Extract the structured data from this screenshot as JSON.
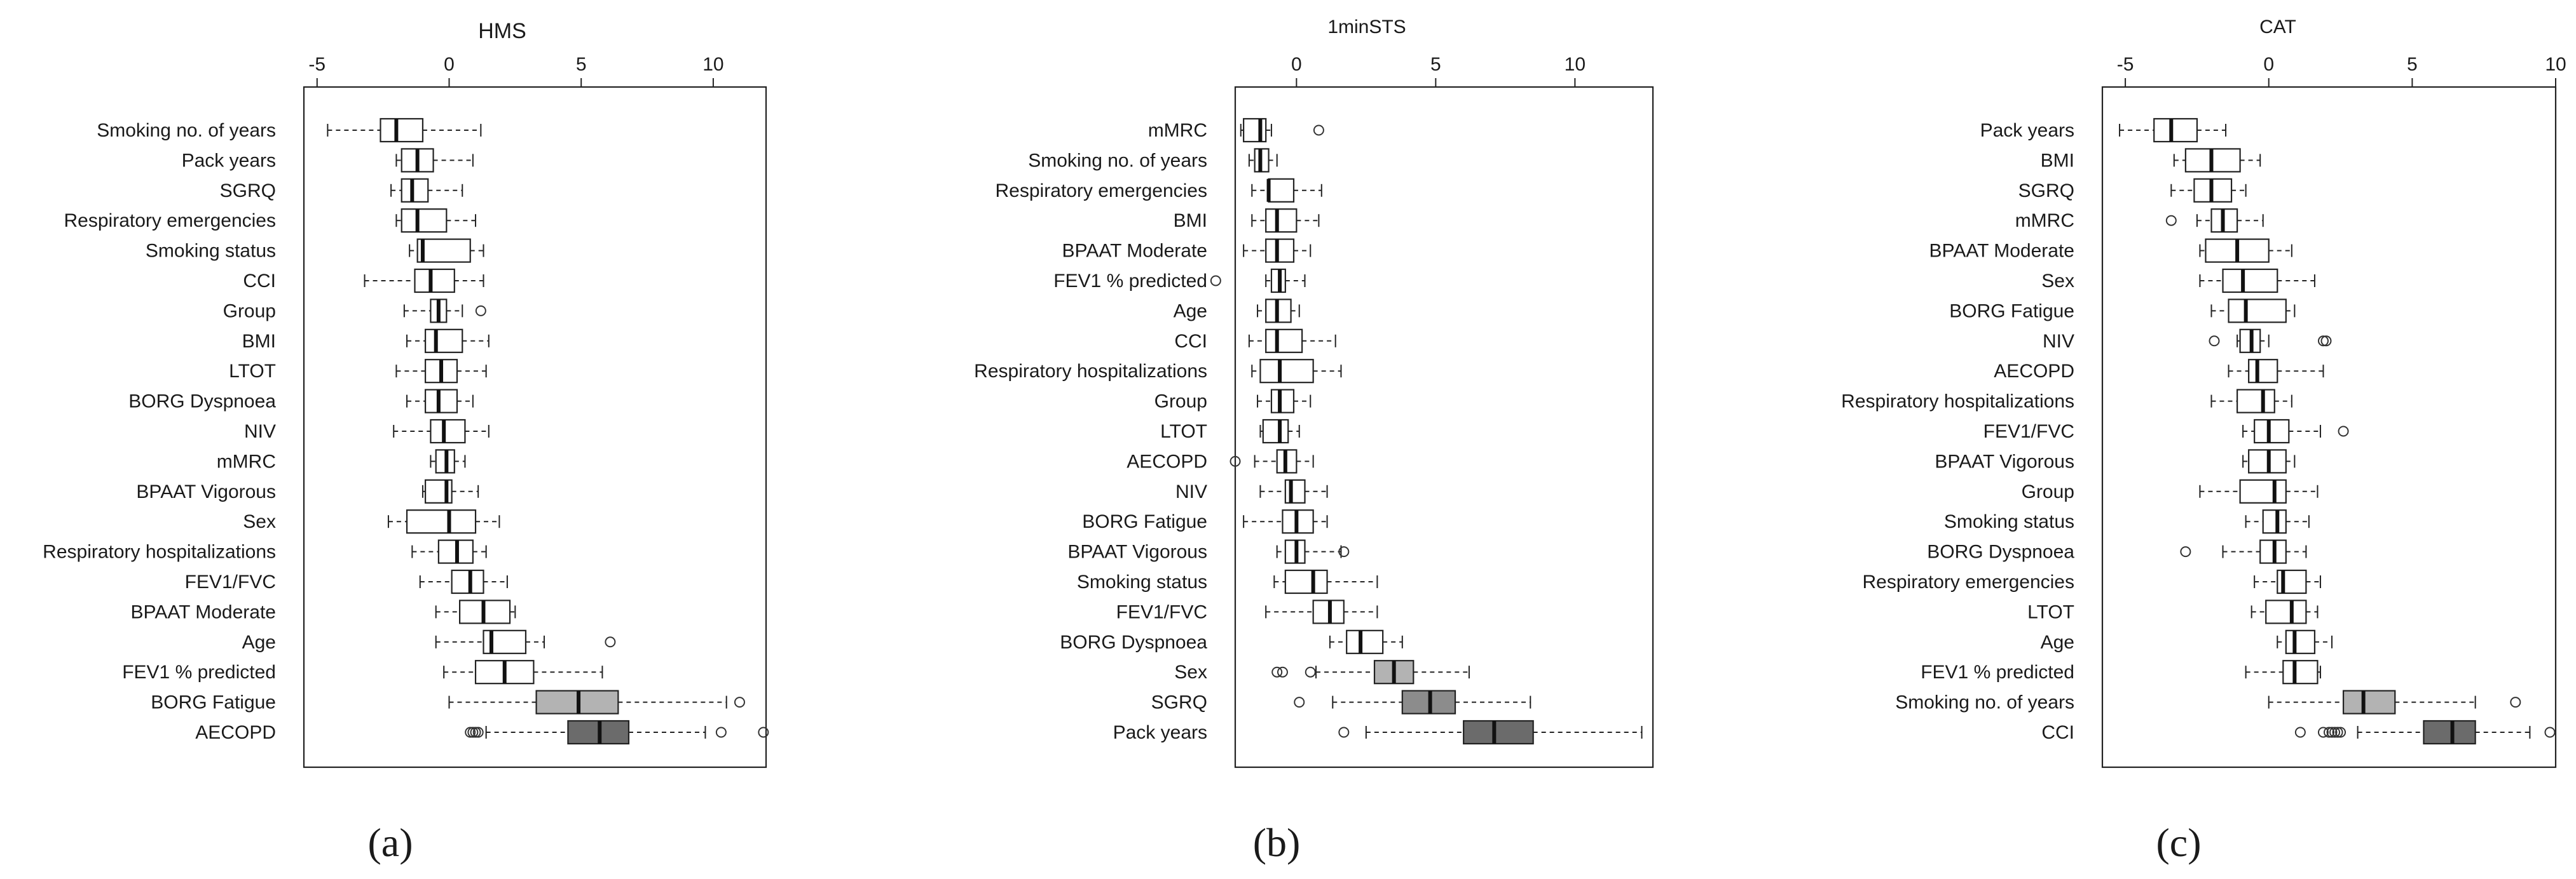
{
  "chart_data": [
    {
      "type": "boxplot",
      "title": "HMS",
      "panel_label": "(a)",
      "xlim": [
        -5.5,
        12
      ],
      "xticks": [
        -5,
        0,
        5,
        10
      ],
      "tick_labels": [
        "-5",
        "0",
        "5",
        "10"
      ],
      "rows": [
        {
          "label": "Smoking no. of years",
          "fill": "#ffffff",
          "min": -4.6,
          "q1": -2.6,
          "median": -2.0,
          "q3": -1.0,
          "max": 1.2,
          "outliers": []
        },
        {
          "label": "Pack years",
          "fill": "#ffffff",
          "min": -2.0,
          "q1": -1.8,
          "median": -1.2,
          "q3": -0.6,
          "max": 0.9,
          "outliers": []
        },
        {
          "label": "SGRQ",
          "fill": "#ffffff",
          "min": -2.2,
          "q1": -1.8,
          "median": -1.4,
          "q3": -0.8,
          "max": 0.5,
          "outliers": []
        },
        {
          "label": "Respiratory emergencies",
          "fill": "#ffffff",
          "min": -2.0,
          "q1": -1.8,
          "median": -1.2,
          "q3": -0.1,
          "max": 1.0,
          "outliers": []
        },
        {
          "label": "Smoking status",
          "fill": "#ffffff",
          "min": -1.5,
          "q1": -1.2,
          "median": -1.0,
          "q3": 0.8,
          "max": 1.3,
          "outliers": []
        },
        {
          "label": "CCI",
          "fill": "#ffffff",
          "min": -3.2,
          "q1": -1.3,
          "median": -0.7,
          "q3": 0.2,
          "max": 1.3,
          "outliers": []
        },
        {
          "label": "Group",
          "fill": "#ffffff",
          "min": -1.7,
          "q1": -0.7,
          "median": -0.4,
          "q3": -0.1,
          "max": 0.5,
          "outliers": [
            1.2
          ]
        },
        {
          "label": "BMI",
          "fill": "#ffffff",
          "min": -1.6,
          "q1": -0.9,
          "median": -0.5,
          "q3": 0.5,
          "max": 1.5,
          "outliers": []
        },
        {
          "label": "LTOT",
          "fill": "#ffffff",
          "min": -2.0,
          "q1": -0.9,
          "median": -0.3,
          "q3": 0.3,
          "max": 1.4,
          "outliers": []
        },
        {
          "label": "BORG Dyspnoea",
          "fill": "#ffffff",
          "min": -1.6,
          "q1": -0.9,
          "median": -0.4,
          "q3": 0.3,
          "max": 0.9,
          "outliers": []
        },
        {
          "label": "NIV",
          "fill": "#ffffff",
          "min": -2.1,
          "q1": -0.7,
          "median": -0.2,
          "q3": 0.6,
          "max": 1.5,
          "outliers": []
        },
        {
          "label": "mMRC",
          "fill": "#ffffff",
          "min": -0.7,
          "q1": -0.5,
          "median": -0.1,
          "q3": 0.2,
          "max": 0.6,
          "outliers": []
        },
        {
          "label": "BPAAT Vigorous",
          "fill": "#ffffff",
          "min": -1.0,
          "q1": -0.9,
          "median": -0.1,
          "q3": 0.1,
          "max": 1.1,
          "outliers": []
        },
        {
          "label": "Sex",
          "fill": "#ffffff",
          "min": -2.3,
          "q1": -1.6,
          "median": 0.0,
          "q3": 1.0,
          "max": 1.9,
          "outliers": []
        },
        {
          "label": "Respiratory hospitalizations",
          "fill": "#ffffff",
          "min": -1.4,
          "q1": -0.4,
          "median": 0.3,
          "q3": 0.9,
          "max": 1.4,
          "outliers": []
        },
        {
          "label": "FEV1/FVC",
          "fill": "#ffffff",
          "min": -1.1,
          "q1": 0.1,
          "median": 0.8,
          "q3": 1.3,
          "max": 2.2,
          "outliers": []
        },
        {
          "label": "BPAAT Moderate",
          "fill": "#ffffff",
          "min": -0.5,
          "q1": 0.4,
          "median": 1.3,
          "q3": 2.3,
          "max": 2.5,
          "outliers": []
        },
        {
          "label": "Age",
          "fill": "#ffffff",
          "min": -0.5,
          "q1": 1.3,
          "median": 1.6,
          "q3": 2.9,
          "max": 3.6,
          "outliers": [
            6.1
          ]
        },
        {
          "label": "FEV1 % predicted",
          "fill": "#ffffff",
          "min": -0.2,
          "q1": 1.0,
          "median": 2.1,
          "q3": 3.2,
          "max": 5.8,
          "outliers": []
        },
        {
          "label": "BORG Fatigue",
          "fill": "#b3b3b3",
          "min": 0.0,
          "q1": 3.3,
          "median": 4.9,
          "q3": 6.4,
          "max": 10.5,
          "outliers": [
            11.0
          ]
        },
        {
          "label": "AECOPD",
          "fill": "#6b6b6b",
          "min": 1.4,
          "q1": 4.5,
          "median": 5.7,
          "q3": 6.8,
          "max": 9.7,
          "outliers": [
            0.8,
            0.9,
            1.0,
            1.1,
            10.3,
            11.9
          ]
        }
      ]
    },
    {
      "type": "boxplot",
      "title": "1minSTS",
      "panel_label": "(b)",
      "xlim": [
        -2.2,
        12.8
      ],
      "xticks": [
        0,
        5,
        10
      ],
      "tick_labels": [
        "0",
        "5",
        "10"
      ],
      "rows": [
        {
          "label": "mMRC",
          "fill": "#ffffff",
          "min": -2.0,
          "q1": -1.9,
          "median": -1.3,
          "q3": -1.1,
          "max": -0.9,
          "outliers": [
            0.8
          ]
        },
        {
          "label": "Smoking no. of years",
          "fill": "#ffffff",
          "min": -1.7,
          "q1": -1.5,
          "median": -1.3,
          "q3": -1.0,
          "max": -0.7,
          "outliers": []
        },
        {
          "label": "Respiratory emergencies",
          "fill": "#ffffff",
          "min": -1.6,
          "q1": -1.0,
          "median": -1.0,
          "q3": -0.1,
          "max": 0.9,
          "outliers": []
        },
        {
          "label": "BMI",
          "fill": "#ffffff",
          "min": -1.6,
          "q1": -1.1,
          "median": -0.7,
          "q3": 0.0,
          "max": 0.8,
          "outliers": []
        },
        {
          "label": "BPAAT Moderate",
          "fill": "#ffffff",
          "min": -1.9,
          "q1": -1.1,
          "median": -0.7,
          "q3": -0.1,
          "max": 0.5,
          "outliers": []
        },
        {
          "label": "FEV1 % predicted",
          "fill": "#ffffff",
          "min": -1.1,
          "q1": -0.9,
          "median": -0.6,
          "q3": -0.4,
          "max": 0.3,
          "outliers": [
            -2.9
          ]
        },
        {
          "label": "Age",
          "fill": "#ffffff",
          "min": -1.4,
          "q1": -1.1,
          "median": -0.7,
          "q3": -0.2,
          "max": 0.1,
          "outliers": []
        },
        {
          "label": "CCI",
          "fill": "#ffffff",
          "min": -1.7,
          "q1": -1.1,
          "median": -0.7,
          "q3": 0.2,
          "max": 1.4,
          "outliers": []
        },
        {
          "label": "Respiratory hospitalizations",
          "fill": "#ffffff",
          "min": -1.6,
          "q1": -1.3,
          "median": -0.6,
          "q3": 0.6,
          "max": 1.6,
          "outliers": []
        },
        {
          "label": "Group",
          "fill": "#ffffff",
          "min": -1.4,
          "q1": -0.9,
          "median": -0.6,
          "q3": -0.1,
          "max": 0.5,
          "outliers": []
        },
        {
          "label": "LTOT",
          "fill": "#ffffff",
          "min": -1.3,
          "q1": -1.2,
          "median": -0.6,
          "q3": -0.3,
          "max": 0.1,
          "outliers": []
        },
        {
          "label": "AECOPD",
          "fill": "#ffffff",
          "min": -1.5,
          "q1": -0.7,
          "median": -0.4,
          "q3": 0.0,
          "max": 0.6,
          "outliers": [
            -2.2
          ]
        },
        {
          "label": "NIV",
          "fill": "#ffffff",
          "min": -1.3,
          "q1": -0.4,
          "median": -0.2,
          "q3": 0.3,
          "max": 1.1,
          "outliers": []
        },
        {
          "label": "BORG Fatigue",
          "fill": "#ffffff",
          "min": -1.9,
          "q1": -0.5,
          "median": 0.0,
          "q3": 0.6,
          "max": 1.1,
          "outliers": []
        },
        {
          "label": "BPAAT Vigorous",
          "fill": "#ffffff",
          "min": -0.7,
          "q1": -0.4,
          "median": 0.0,
          "q3": 0.3,
          "max": 1.6,
          "outliers": [
            1.7
          ]
        },
        {
          "label": "Smoking status",
          "fill": "#ffffff",
          "min": -0.8,
          "q1": -0.4,
          "median": 0.6,
          "q3": 1.1,
          "max": 2.9,
          "outliers": []
        },
        {
          "label": "FEV1/FVC",
          "fill": "#ffffff",
          "min": -1.1,
          "q1": 0.6,
          "median": 1.2,
          "q3": 1.7,
          "max": 2.9,
          "outliers": []
        },
        {
          "label": "BORG Dyspnoea",
          "fill": "#ffffff",
          "min": 1.2,
          "q1": 1.8,
          "median": 2.3,
          "q3": 3.1,
          "max": 3.8,
          "outliers": []
        },
        {
          "label": "Sex",
          "fill": "#b3b3b3",
          "min": 0.7,
          "q1": 2.8,
          "median": 3.5,
          "q3": 4.2,
          "max": 6.2,
          "outliers": [
            -0.7,
            -0.5,
            0.5
          ]
        },
        {
          "label": "SGRQ",
          "fill": "#8c8c8c",
          "min": 1.3,
          "q1": 3.8,
          "median": 4.8,
          "q3": 5.7,
          "max": 8.4,
          "outliers": [
            0.1
          ]
        },
        {
          "label": "Pack years",
          "fill": "#6b6b6b",
          "min": 2.5,
          "q1": 6.0,
          "median": 7.1,
          "q3": 8.5,
          "max": 12.4,
          "outliers": [
            1.7
          ]
        }
      ]
    },
    {
      "type": "boxplot",
      "title": "CAT",
      "panel_label": "(c)",
      "xlim": [
        -5.8,
        10
      ],
      "xticks": [
        -5,
        0,
        5,
        10
      ],
      "tick_labels": [
        "-5",
        "0",
        "5",
        "10"
      ],
      "rows": [
        {
          "label": "Pack years",
          "fill": "#ffffff",
          "min": -5.2,
          "q1": -4.0,
          "median": -3.4,
          "q3": -2.5,
          "max": -1.5,
          "outliers": []
        },
        {
          "label": "BMI",
          "fill": "#ffffff",
          "min": -3.3,
          "q1": -2.9,
          "median": -2.0,
          "q3": -1.0,
          "max": -0.3,
          "outliers": []
        },
        {
          "label": "SGRQ",
          "fill": "#ffffff",
          "min": -3.4,
          "q1": -2.6,
          "median": -2.0,
          "q3": -1.3,
          "max": -0.8,
          "outliers": []
        },
        {
          "label": "mMRC",
          "fill": "#ffffff",
          "min": -2.5,
          "q1": -2.0,
          "median": -1.6,
          "q3": -1.1,
          "max": -0.2,
          "outliers": [
            -3.4
          ]
        },
        {
          "label": "BPAAT Moderate",
          "fill": "#ffffff",
          "min": -2.4,
          "q1": -2.2,
          "median": -1.1,
          "q3": 0.0,
          "max": 0.8,
          "outliers": []
        },
        {
          "label": "Sex",
          "fill": "#ffffff",
          "min": -2.4,
          "q1": -1.6,
          "median": -0.9,
          "q3": 0.3,
          "max": 1.6,
          "outliers": []
        },
        {
          "label": "BORG Fatigue",
          "fill": "#ffffff",
          "min": -2.0,
          "q1": -1.4,
          "median": -0.8,
          "q3": 0.6,
          "max": 0.9,
          "outliers": []
        },
        {
          "label": "NIV",
          "fill": "#ffffff",
          "min": -1.1,
          "q1": -1.0,
          "median": -0.6,
          "q3": -0.3,
          "max": 0.0,
          "outliers": [
            -1.9,
            1.9,
            2.0
          ]
        },
        {
          "label": "AECOPD",
          "fill": "#ffffff",
          "min": -1.4,
          "q1": -0.7,
          "median": -0.4,
          "q3": 0.3,
          "max": 1.9,
          "outliers": []
        },
        {
          "label": "Respiratory hospitalizations",
          "fill": "#ffffff",
          "min": -2.0,
          "q1": -1.1,
          "median": -0.2,
          "q3": 0.2,
          "max": 0.8,
          "outliers": []
        },
        {
          "label": "FEV1/FVC",
          "fill": "#ffffff",
          "min": -0.9,
          "q1": -0.5,
          "median": 0.0,
          "q3": 0.7,
          "max": 1.8,
          "outliers": [
            2.6
          ]
        },
        {
          "label": "BPAAT Vigorous",
          "fill": "#ffffff",
          "min": -0.9,
          "q1": -0.7,
          "median": 0.0,
          "q3": 0.6,
          "max": 0.9,
          "outliers": []
        },
        {
          "label": "Group",
          "fill": "#ffffff",
          "min": -2.4,
          "q1": -1.0,
          "median": 0.2,
          "q3": 0.6,
          "max": 1.7,
          "outliers": []
        },
        {
          "label": "Smoking status",
          "fill": "#ffffff",
          "min": -0.8,
          "q1": -0.2,
          "median": 0.3,
          "q3": 0.6,
          "max": 1.4,
          "outliers": []
        },
        {
          "label": "BORG Dyspnoea",
          "fill": "#ffffff",
          "min": -1.6,
          "q1": -0.3,
          "median": 0.2,
          "q3": 0.6,
          "max": 1.3,
          "outliers": [
            -2.9
          ]
        },
        {
          "label": "Respiratory emergencies",
          "fill": "#ffffff",
          "min": -0.5,
          "q1": 0.3,
          "median": 0.5,
          "q3": 1.3,
          "max": 1.8,
          "outliers": []
        },
        {
          "label": "LTOT",
          "fill": "#ffffff",
          "min": -0.6,
          "q1": -0.1,
          "median": 0.8,
          "q3": 1.3,
          "max": 1.7,
          "outliers": []
        },
        {
          "label": "Age",
          "fill": "#ffffff",
          "min": 0.3,
          "q1": 0.6,
          "median": 0.9,
          "q3": 1.6,
          "max": 2.2,
          "outliers": []
        },
        {
          "label": "FEV1 % predicted",
          "fill": "#ffffff",
          "min": -0.8,
          "q1": 0.5,
          "median": 0.9,
          "q3": 1.7,
          "max": 1.8,
          "outliers": []
        },
        {
          "label": "Smoking no. of years",
          "fill": "#b3b3b3",
          "min": 0.0,
          "q1": 2.6,
          "median": 3.3,
          "q3": 4.4,
          "max": 7.2,
          "outliers": [
            8.6
          ]
        },
        {
          "label": "CCI",
          "fill": "#6b6b6b",
          "min": 3.1,
          "q1": 5.4,
          "median": 6.4,
          "q3": 7.2,
          "max": 9.1,
          "outliers": [
            1.1,
            1.9,
            2.1,
            2.2,
            2.3,
            2.4,
            2.5,
            9.8
          ]
        }
      ]
    }
  ]
}
